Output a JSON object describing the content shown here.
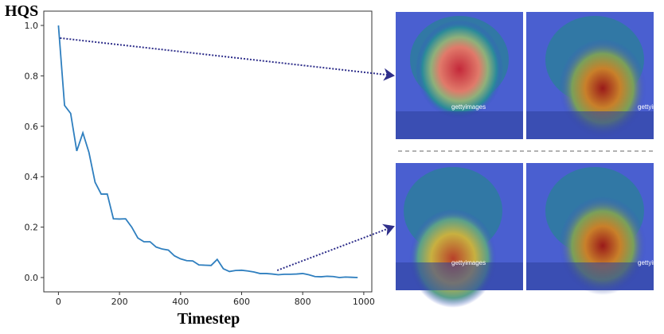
{
  "chart_data": {
    "type": "line",
    "title": "",
    "ylabel": "HQS",
    "xlabel": "Timestep",
    "xlim": [
      -30,
      1020
    ],
    "ylim": [
      -0.05,
      1.05
    ],
    "xticks": [
      0,
      200,
      400,
      600,
      800,
      1000
    ],
    "xtick_labels": [
      "0",
      "200",
      "400",
      "600",
      "800",
      "1000"
    ],
    "yticks": [
      0.0,
      0.2,
      0.4,
      0.6,
      0.8,
      1.0
    ],
    "ytick_labels": [
      "0.0",
      "0.2",
      "0.4",
      "0.6",
      "0.8",
      "1.0"
    ],
    "grid": false,
    "series": [
      {
        "name": "HQS",
        "color": "#2f7fbf",
        "x": [
          0,
          20,
          40,
          60,
          80,
          100,
          120,
          140,
          160,
          180,
          200,
          220,
          240,
          260,
          280,
          300,
          320,
          340,
          360,
          380,
          400,
          420,
          440,
          460,
          480,
          500,
          520,
          540,
          560,
          580,
          600,
          620,
          640,
          660,
          680,
          700,
          720,
          740,
          760,
          780,
          800,
          820,
          840,
          860,
          880,
          900,
          920,
          940,
          960,
          980
        ],
        "y": [
          1.0,
          0.683,
          0.651,
          0.502,
          0.574,
          0.496,
          0.378,
          0.331,
          0.331,
          0.233,
          0.232,
          0.233,
          0.2,
          0.157,
          0.142,
          0.142,
          0.121,
          0.113,
          0.109,
          0.086,
          0.074,
          0.067,
          0.066,
          0.05,
          0.049,
          0.048,
          0.072,
          0.035,
          0.024,
          0.028,
          0.029,
          0.026,
          0.022,
          0.016,
          0.016,
          0.014,
          0.011,
          0.013,
          0.013,
          0.014,
          0.016,
          0.011,
          0.004,
          0.003,
          0.005,
          0.004,
          0.0,
          0.002,
          0.001,
          0.0
        ]
      }
    ],
    "annotations": [
      {
        "type": "dotted-arrow",
        "from_x": 0,
        "from_y": 0.95,
        "to": "top-row-images"
      },
      {
        "type": "dotted-arrow",
        "from_x": 800,
        "from_y": 0.03,
        "to": "bottom-row-images"
      }
    ],
    "arrow_color": "#2e2e8a"
  },
  "images": {
    "watermark": "gettyimages"
  }
}
